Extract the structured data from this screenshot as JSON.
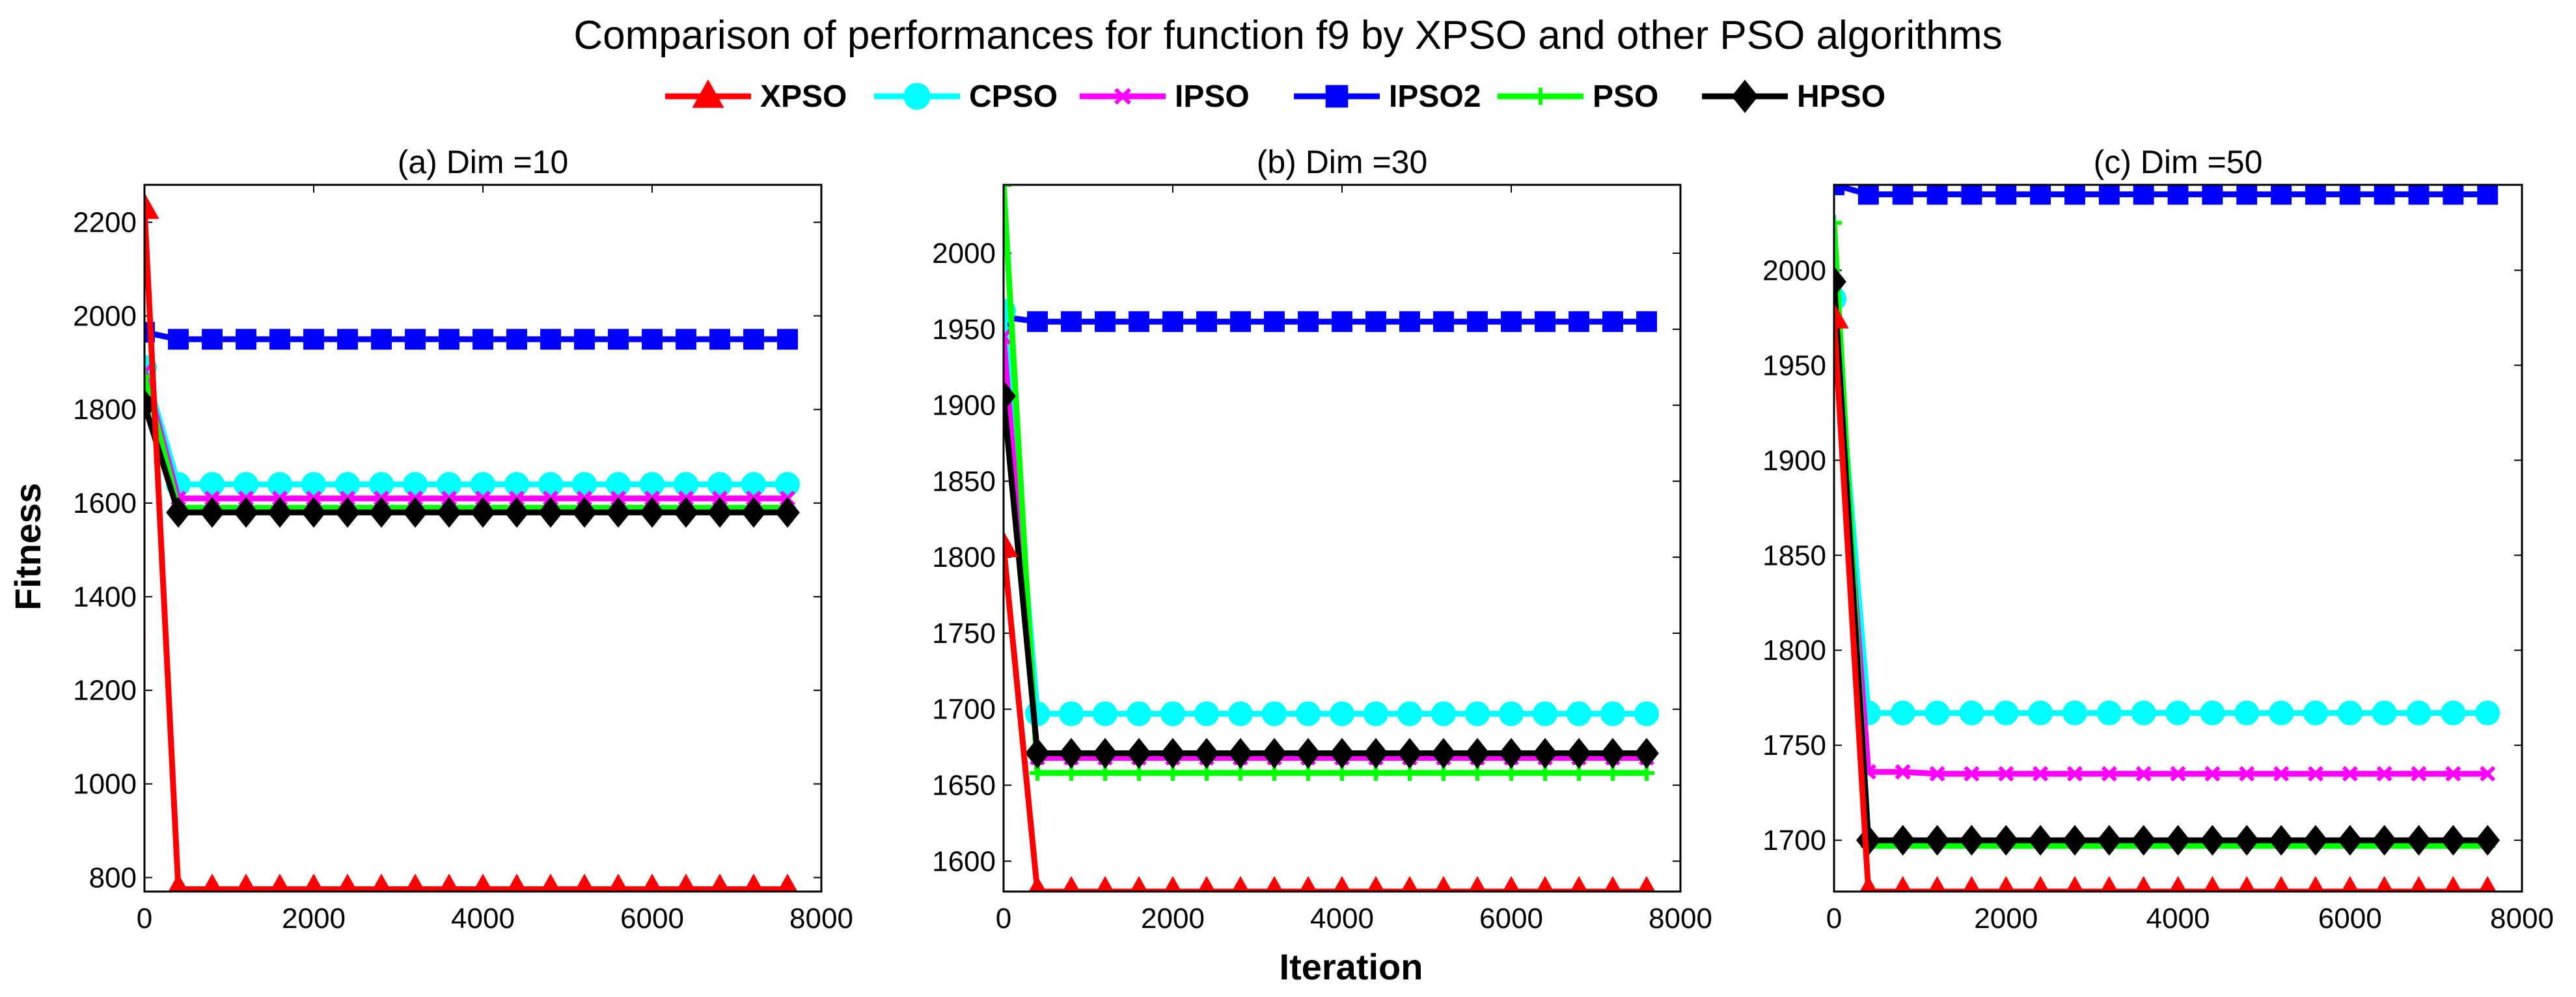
{
  "title": "Comparison of performances for function f9 by XPSO and other PSO algorithms",
  "ylabel": "Fitness",
  "xlabel": "Iteration",
  "legend": [
    {
      "name": "XPSO",
      "color": "#ff0000",
      "marker": "triangle"
    },
    {
      "name": "CPSO",
      "color": "#00ffff",
      "marker": "circle"
    },
    {
      "name": "IPSO",
      "color": "#ff00ff",
      "marker": "x"
    },
    {
      "name": "IPSO2",
      "color": "#0000ff",
      "marker": "square"
    },
    {
      "name": "PSO",
      "color": "#00ff00",
      "marker": "plus"
    },
    {
      "name": "HPSO",
      "color": "#000000",
      "marker": "diamond"
    }
  ],
  "chart_data": [
    {
      "type": "line",
      "title": "(a) Dim =10",
      "xlim": [
        0,
        8000
      ],
      "ylim": [
        770,
        2280
      ],
      "xticks": [
        0,
        2000,
        4000,
        6000,
        8000
      ],
      "yticks": [
        800,
        1000,
        1200,
        1400,
        1600,
        1800,
        2000,
        2200
      ],
      "yticklabels": [
        "800",
        "1000",
        "1200",
        "1400",
        "1600",
        "1800",
        "2000",
        "2200"
      ],
      "x": [
        0,
        400,
        800,
        1200,
        1600,
        2000,
        2400,
        2800,
        3200,
        3600,
        4000,
        4400,
        4800,
        5200,
        5600,
        6000,
        6400,
        6800,
        7200,
        7600
      ],
      "series": [
        {
          "name": "IPSO2",
          "values": [
            1965,
            1950,
            1950,
            1950,
            1950,
            1950,
            1950,
            1950,
            1950,
            1950,
            1950,
            1950,
            1950,
            1950,
            1950,
            1950,
            1950,
            1950,
            1950,
            1950
          ]
        },
        {
          "name": "CPSO",
          "values": [
            1890,
            1640,
            1640,
            1640,
            1640,
            1640,
            1640,
            1640,
            1640,
            1640,
            1640,
            1640,
            1640,
            1640,
            1640,
            1640,
            1640,
            1640,
            1640,
            1640
          ]
        },
        {
          "name": "IPSO",
          "values": [
            1880,
            1610,
            1610,
            1610,
            1610,
            1610,
            1610,
            1610,
            1610,
            1610,
            1610,
            1610,
            1610,
            1610,
            1610,
            1610,
            1610,
            1610,
            1610,
            1610
          ]
        },
        {
          "name": "PSO",
          "values": [
            1870,
            1590,
            1590,
            1590,
            1590,
            1590,
            1590,
            1590,
            1590,
            1590,
            1590,
            1590,
            1590,
            1590,
            1590,
            1590,
            1590,
            1590,
            1590,
            1590
          ]
        },
        {
          "name": "HPSO",
          "values": [
            1810,
            1580,
            1580,
            1580,
            1580,
            1580,
            1580,
            1580,
            1580,
            1580,
            1580,
            1580,
            1580,
            1580,
            1580,
            1580,
            1580,
            1580,
            1580,
            1580
          ]
        },
        {
          "name": "XPSO",
          "values": [
            2230,
            775,
            775,
            775,
            775,
            775,
            775,
            775,
            775,
            775,
            775,
            775,
            775,
            775,
            775,
            775,
            775,
            775,
            775,
            775
          ]
        }
      ]
    },
    {
      "type": "line",
      "title": "(b) Dim =30",
      "xlim": [
        0,
        8000
      ],
      "ylim": [
        1580,
        2045
      ],
      "xticks": [
        0,
        2000,
        4000,
        6000,
        8000
      ],
      "yticks": [
        1600,
        1650,
        1700,
        1750,
        1800,
        1850,
        1900,
        1950,
        2000
      ],
      "yticklabels": [
        "1600",
        "1650",
        "1700",
        "1750",
        "1800",
        "1850",
        "1900",
        "1950",
        "2000"
      ],
      "x": [
        0,
        400,
        800,
        1200,
        1600,
        2000,
        2400,
        2800,
        3200,
        3600,
        4000,
        4400,
        4800,
        5200,
        5600,
        6000,
        6400,
        6800,
        7200,
        7600
      ],
      "series": [
        {
          "name": "IPSO2",
          "values": [
            1958,
            1955,
            1955,
            1955,
            1955,
            1955,
            1955,
            1955,
            1955,
            1955,
            1955,
            1955,
            1955,
            1955,
            1955,
            1955,
            1955,
            1955,
            1955,
            1955
          ]
        },
        {
          "name": "CPSO",
          "values": [
            1962,
            1697,
            1697,
            1697,
            1697,
            1697,
            1697,
            1697,
            1697,
            1697,
            1697,
            1697,
            1697,
            1697,
            1697,
            1697,
            1697,
            1697,
            1697,
            1697
          ]
        },
        {
          "name": "IPSO",
          "values": [
            1945,
            1668,
            1668,
            1668,
            1668,
            1668,
            1668,
            1668,
            1668,
            1668,
            1668,
            1668,
            1668,
            1668,
            1668,
            1668,
            1668,
            1668,
            1668,
            1668
          ]
        },
        {
          "name": "PSO",
          "values": [
            2045,
            1658,
            1658,
            1658,
            1658,
            1658,
            1658,
            1658,
            1658,
            1658,
            1658,
            1658,
            1658,
            1658,
            1658,
            1658,
            1658,
            1658,
            1658,
            1658
          ]
        },
        {
          "name": "HPSO",
          "values": [
            1906,
            1671,
            1671,
            1671,
            1671,
            1671,
            1671,
            1671,
            1671,
            1671,
            1671,
            1671,
            1671,
            1671,
            1671,
            1671,
            1671,
            1671,
            1671,
            1671
          ]
        },
        {
          "name": "XPSO",
          "values": [
            1807,
            1580,
            1580,
            1580,
            1580,
            1580,
            1580,
            1580,
            1580,
            1580,
            1580,
            1580,
            1580,
            1580,
            1580,
            1580,
            1580,
            1580,
            1580,
            1580
          ]
        }
      ]
    },
    {
      "type": "line",
      "title": "(c) Dim =50",
      "xlim": [
        0,
        8000
      ],
      "ylim": [
        1673,
        2045
      ],
      "xticks": [
        0,
        2000,
        4000,
        6000,
        8000
      ],
      "yticks": [
        1700,
        1750,
        1800,
        1850,
        1900,
        1950,
        2000
      ],
      "yticklabels": [
        "1700",
        "1750",
        "1800",
        "1850",
        "1900",
        "1950",
        "2000"
      ],
      "x": [
        0,
        400,
        800,
        1200,
        1600,
        2000,
        2400,
        2800,
        3200,
        3600,
        4000,
        4400,
        4800,
        5200,
        5600,
        6000,
        6400,
        6800,
        7200,
        7600
      ],
      "series": [
        {
          "name": "IPSO2",
          "values": [
            2045,
            2040,
            2040,
            2040,
            2040,
            2040,
            2040,
            2040,
            2040,
            2040,
            2040,
            2040,
            2040,
            2040,
            2040,
            2040,
            2040,
            2040,
            2040,
            2040
          ]
        },
        {
          "name": "CPSO",
          "values": [
            1985,
            1767,
            1767,
            1767,
            1767,
            1767,
            1767,
            1767,
            1767,
            1767,
            1767,
            1767,
            1767,
            1767,
            1767,
            1767,
            1767,
            1767,
            1767,
            1767
          ]
        },
        {
          "name": "IPSO",
          "values": [
            1980,
            1736,
            1736,
            1735,
            1735,
            1735,
            1735,
            1735,
            1735,
            1735,
            1735,
            1735,
            1735,
            1735,
            1735,
            1735,
            1735,
            1735,
            1735,
            1735
          ]
        },
        {
          "name": "PSO",
          "values": [
            2025,
            1697,
            1697,
            1697,
            1697,
            1697,
            1697,
            1697,
            1697,
            1697,
            1697,
            1697,
            1697,
            1697,
            1697,
            1697,
            1697,
            1697,
            1697,
            1697
          ]
        },
        {
          "name": "HPSO",
          "values": [
            1994,
            1700,
            1700,
            1700,
            1700,
            1700,
            1700,
            1700,
            1700,
            1700,
            1700,
            1700,
            1700,
            1700,
            1700,
            1700,
            1700,
            1700,
            1700,
            1700
          ]
        },
        {
          "name": "XPSO",
          "values": [
            1975,
            1673,
            1673,
            1673,
            1673,
            1673,
            1673,
            1673,
            1673,
            1673,
            1673,
            1673,
            1673,
            1673,
            1673,
            1673,
            1673,
            1673,
            1673,
            1673
          ]
        }
      ]
    }
  ]
}
